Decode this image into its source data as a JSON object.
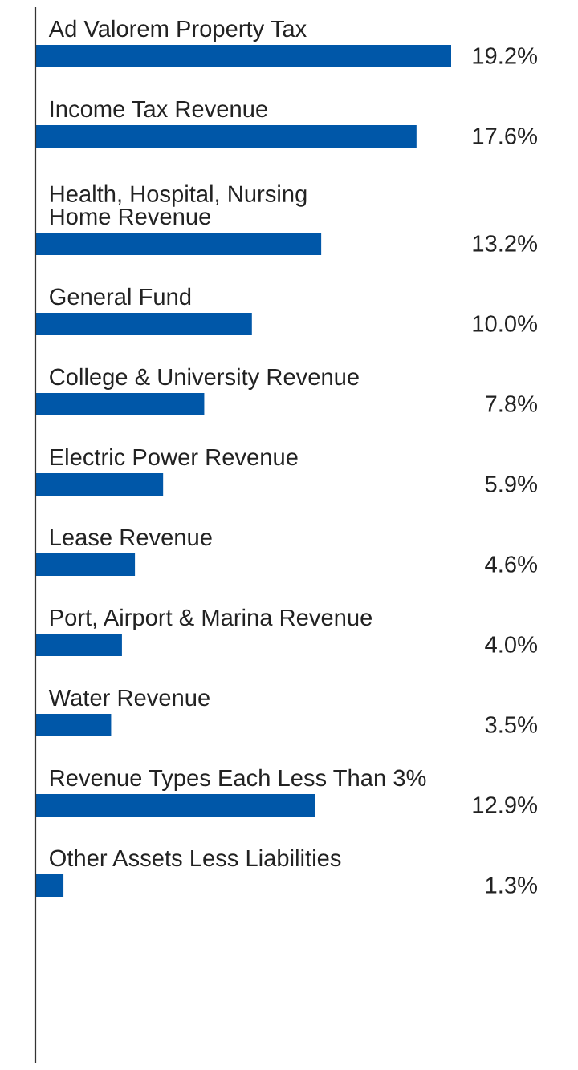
{
  "chart_data": {
    "type": "bar",
    "orientation": "horizontal",
    "categories": [
      "Ad Valorem Property Tax",
      "Income Tax Revenue",
      "Health, Hospital, Nursing\nHome Revenue",
      "General Fund",
      "College & University Revenue",
      "Electric Power Revenue",
      "Lease Revenue",
      "Port, Airport & Marina Revenue",
      "Water Revenue",
      "Revenue Types Each Less Than 3%",
      "Other Assets Less Liabilities"
    ],
    "values": [
      19.2,
      17.6,
      13.2,
      10.0,
      7.8,
      5.9,
      4.6,
      4.0,
      3.5,
      12.9,
      1.3
    ],
    "value_labels": [
      "19.2%",
      "17.6%",
      "13.2%",
      "10.0%",
      "7.8%",
      "5.9%",
      "4.6%",
      "4.0%",
      "3.5%",
      "12.9%",
      "1.3%"
    ],
    "color": "#0057a8"
  }
}
